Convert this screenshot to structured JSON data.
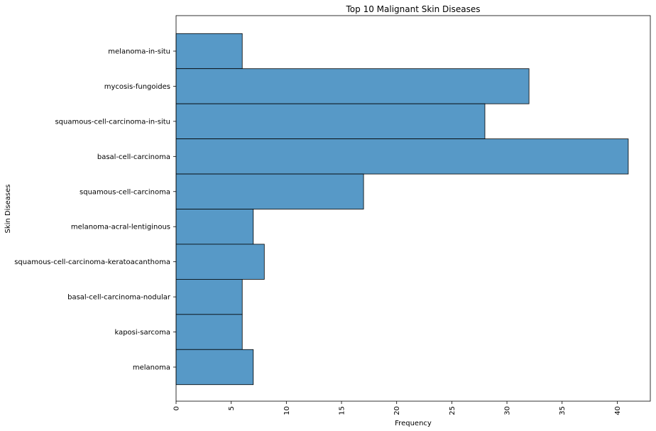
{
  "chart_data": {
    "type": "bar",
    "orientation": "horizontal",
    "title": "Top 10 Malignant Skin Diseases",
    "xlabel": "Frequency",
    "ylabel": "Skin Diseases",
    "categories": [
      "melanoma-in-situ",
      "mycosis-fungoides",
      "squamous-cell-carcinoma-in-situ",
      "basal-cell-carcinoma",
      "squamous-cell-carcinoma",
      "melanoma-acral-lentiginous",
      "squamous-cell-carcinoma-keratoacanthoma",
      "basal-cell-carcinoma-nodular",
      "kaposi-sarcoma",
      "melanoma"
    ],
    "values": [
      6,
      32,
      28,
      41,
      17,
      7,
      8,
      6,
      6,
      7
    ],
    "xlim": [
      0,
      43
    ],
    "xticks": [
      0,
      5,
      10,
      15,
      20,
      25,
      30,
      35,
      40
    ],
    "grid": false,
    "bar_color": "#5799c7",
    "edge_color": "#000000"
  }
}
